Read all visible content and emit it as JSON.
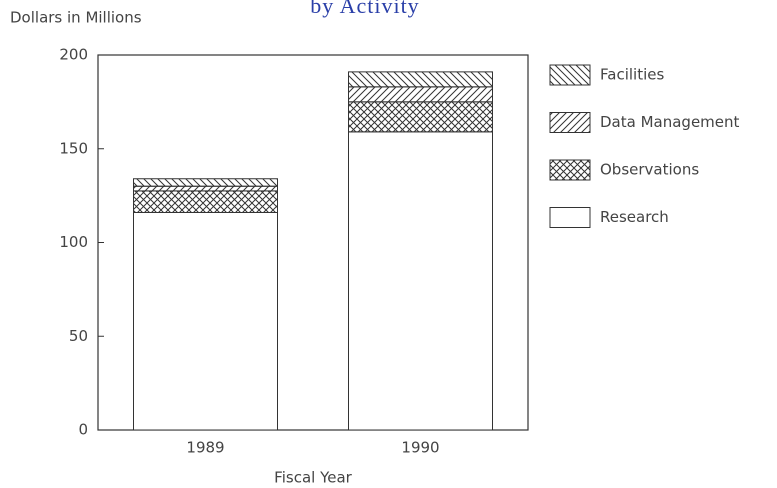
{
  "chart_data": {
    "type": "stacked_bar",
    "title": "by Activity",
    "y_label": "Dollars in Millions",
    "x_label": "Fiscal Year",
    "categories": [
      "1989",
      "1990"
    ],
    "series": [
      {
        "name": "Research",
        "color": "#ffffff",
        "hatch": "none",
        "values": [
          116,
          159
        ]
      },
      {
        "name": "Observations",
        "color": "#ffffff",
        "hatch": "cross",
        "values": [
          11.5,
          16
        ]
      },
      {
        "name": "Data Management",
        "color": "#ffffff",
        "hatch": "forward",
        "values": [
          2.5,
          8
        ]
      },
      {
        "name": "Facilities",
        "color": "#ffffff",
        "hatch": "back",
        "values": [
          4,
          8
        ]
      }
    ],
    "ylim": [
      0,
      200
    ],
    "yticks": [
      0,
      50,
      100,
      150,
      200
    ],
    "legend": "right"
  }
}
